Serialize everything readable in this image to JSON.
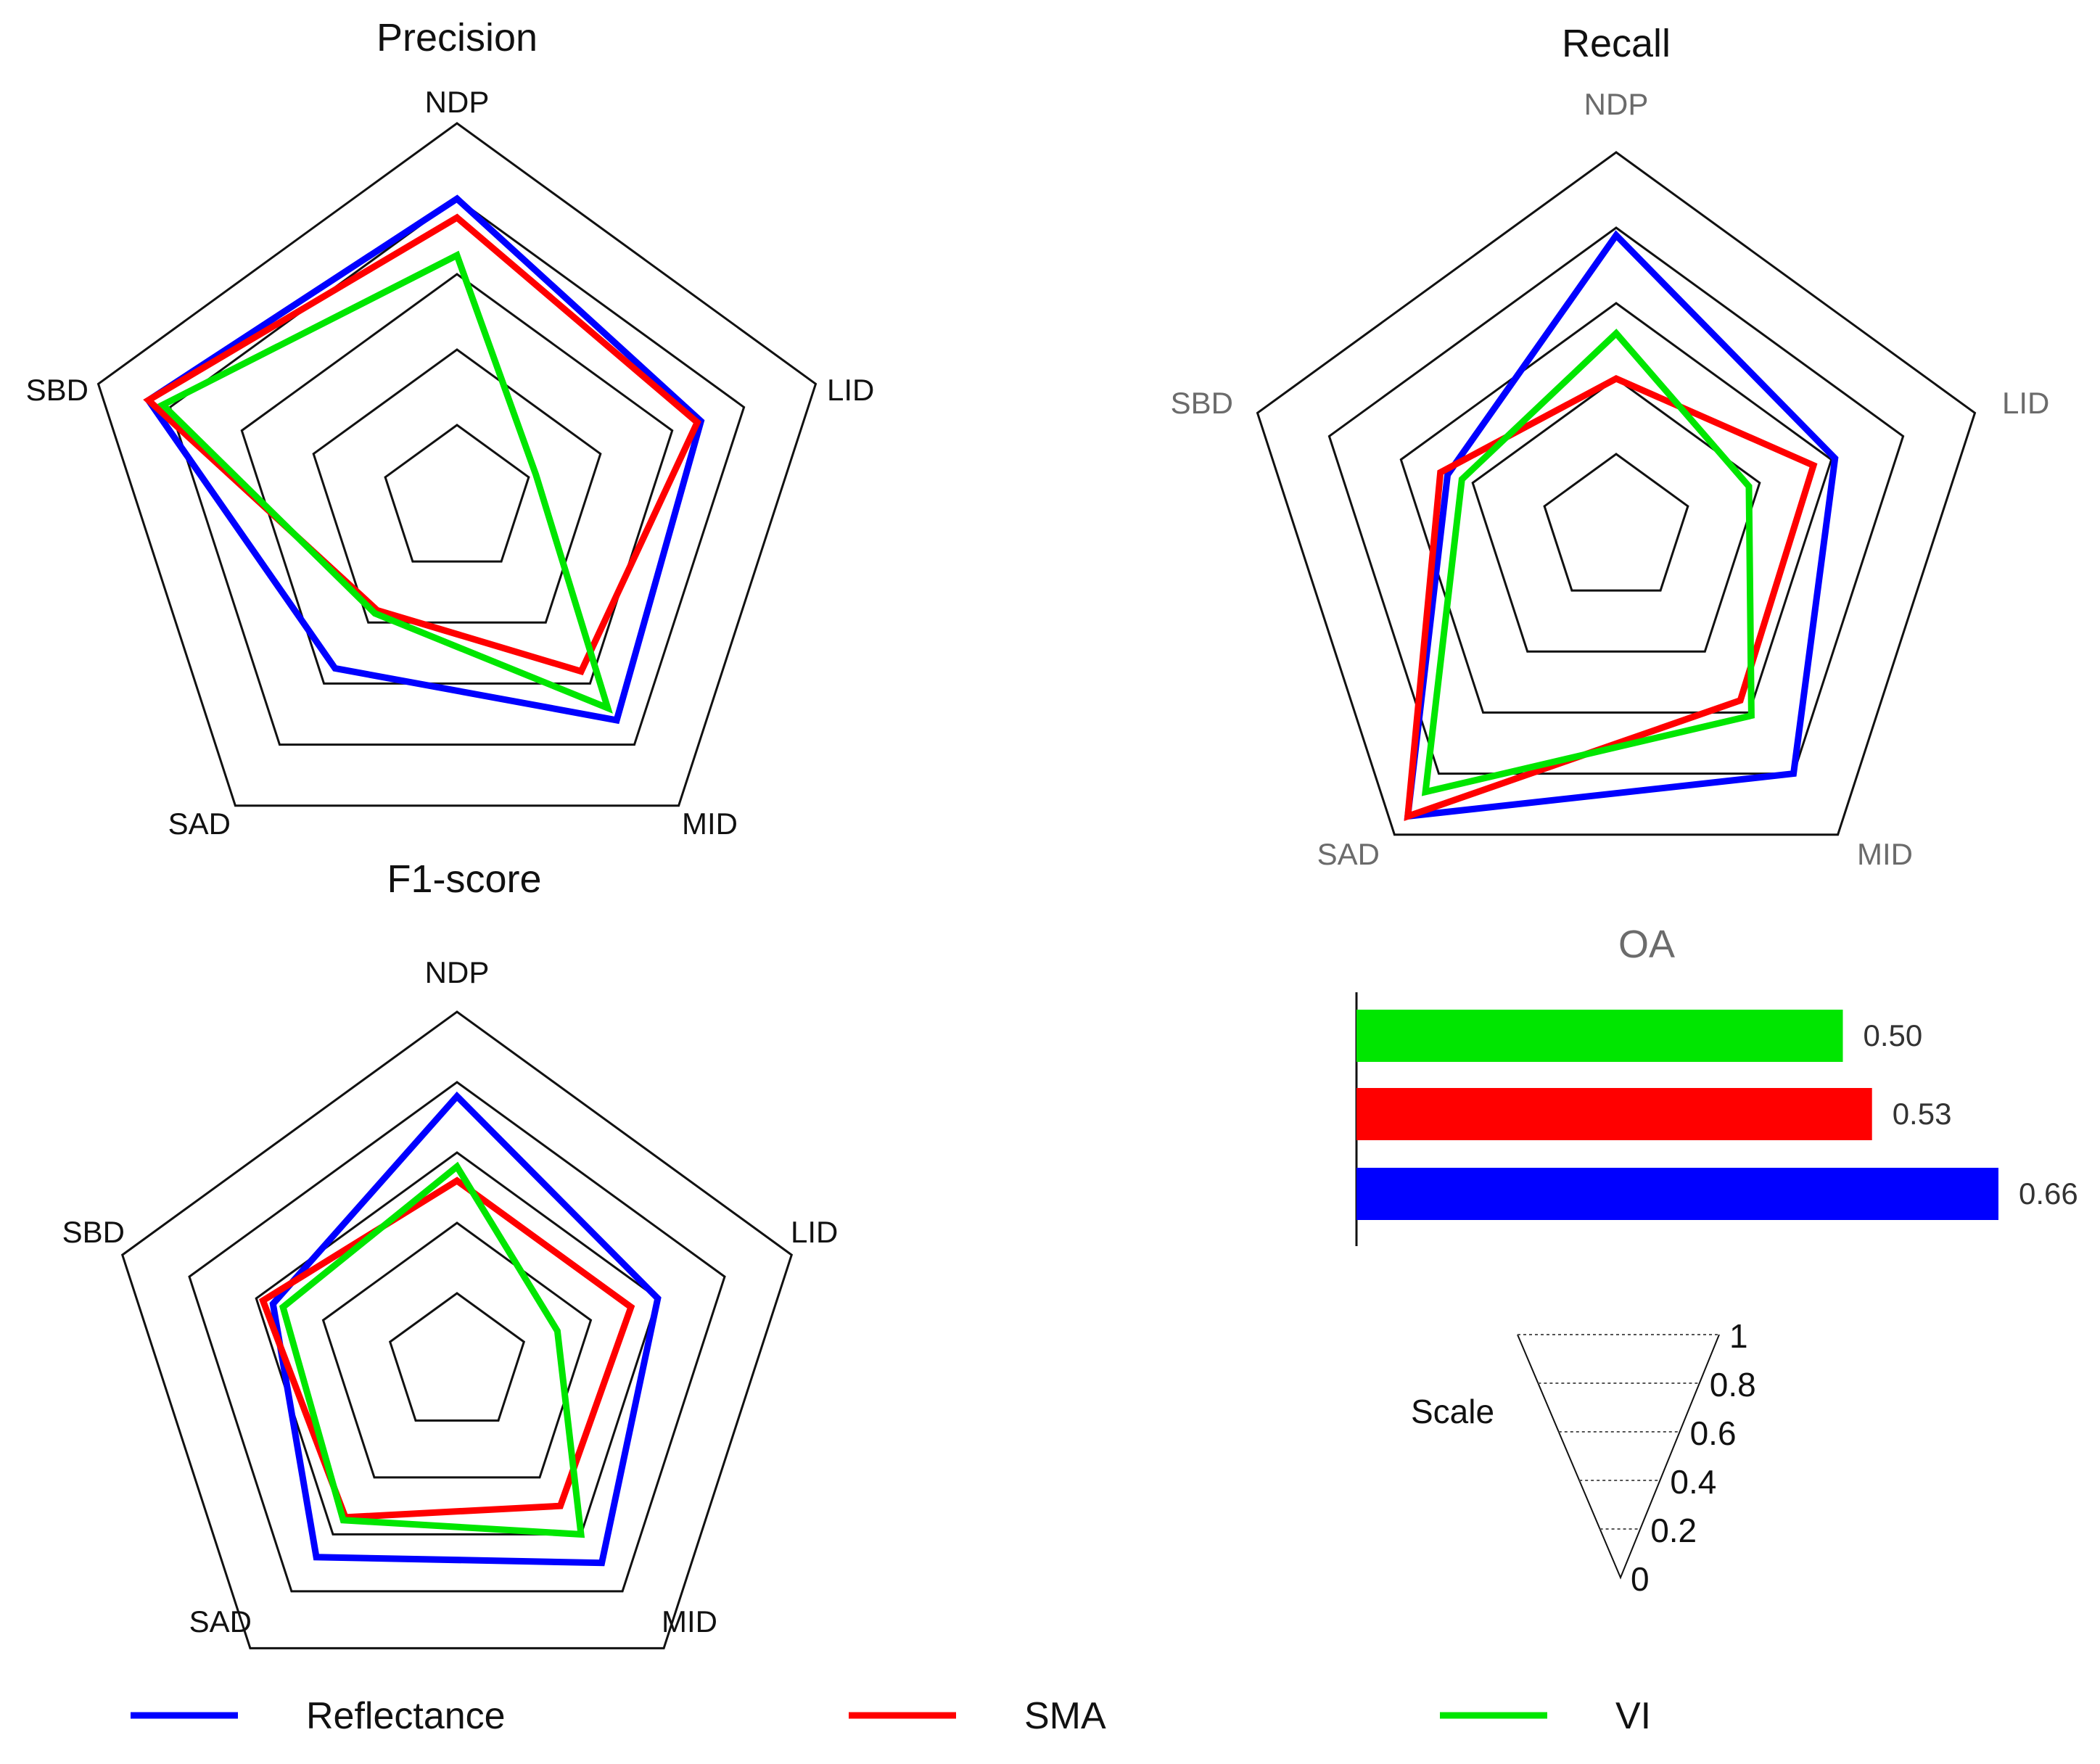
{
  "chart_data": [
    {
      "type": "radar",
      "title": "Precision",
      "axes": [
        "NDP",
        "LID",
        "MID",
        "SAD",
        "SBD"
      ],
      "range": [
        0,
        1
      ],
      "series": [
        {
          "name": "Reflectance",
          "values": [
            0.8,
            0.68,
            0.72,
            0.55,
            0.86
          ]
        },
        {
          "name": "SMA",
          "values": [
            0.75,
            0.67,
            0.56,
            0.36,
            0.86
          ]
        },
        {
          "name": "VI",
          "values": [
            0.65,
            0.22,
            0.68,
            0.37,
            0.82
          ]
        }
      ]
    },
    {
      "type": "radar",
      "title": "Recall",
      "axes": [
        "NDP",
        "LID",
        "MID",
        "SAD",
        "SBD"
      ],
      "range": [
        0,
        1
      ],
      "series": [
        {
          "name": "Reflectance",
          "values": [
            0.78,
            0.61,
            0.8,
            0.94,
            0.47
          ]
        },
        {
          "name": "SMA",
          "values": [
            0.4,
            0.55,
            0.56,
            0.94,
            0.49
          ]
        },
        {
          "name": "VI",
          "values": [
            0.52,
            0.37,
            0.61,
            0.86,
            0.43
          ]
        }
      ]
    },
    {
      "type": "radar",
      "title": "F1-score",
      "axes": [
        "NDP",
        "LID",
        "MID",
        "SAD",
        "SBD"
      ],
      "range": [
        0,
        1
      ],
      "series": [
        {
          "name": "Reflectance",
          "values": [
            0.76,
            0.6,
            0.7,
            0.68,
            0.55
          ]
        },
        {
          "name": "SMA",
          "values": [
            0.52,
            0.52,
            0.5,
            0.54,
            0.58
          ]
        },
        {
          "name": "VI",
          "values": [
            0.56,
            0.3,
            0.6,
            0.55,
            0.52
          ]
        }
      ]
    },
    {
      "type": "bar",
      "orientation": "horizontal",
      "title": "OA",
      "categories": [
        "VI",
        "SMA",
        "Reflectance"
      ],
      "values": [
        0.5,
        0.53,
        0.66
      ],
      "labels": [
        "0.50",
        "0.53",
        "0.66"
      ],
      "xlim": [
        0,
        0.66
      ]
    }
  ],
  "series_colors": {
    "Reflectance": "#0000ff",
    "SMA": "#ff0000",
    "VI": "#00e600"
  },
  "legend": {
    "items": [
      "Reflectance",
      "SMA",
      "VI"
    ]
  },
  "scale": {
    "label": "Scale",
    "ticks": [
      "0",
      "0.2",
      "0.4",
      "0.6",
      "0.8",
      "1"
    ]
  }
}
